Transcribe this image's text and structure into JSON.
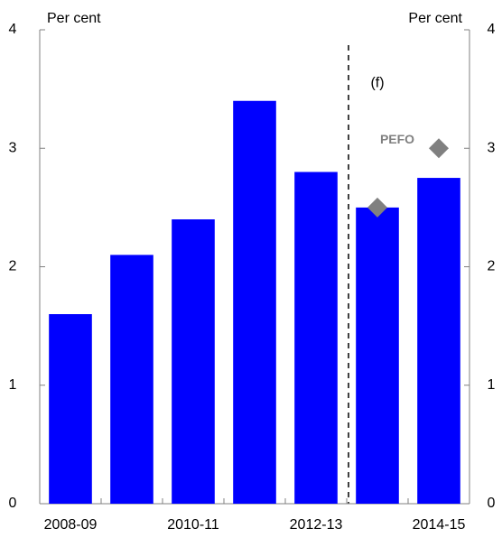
{
  "chart_data": {
    "type": "bar",
    "y_label": "Per cent",
    "y2_label": "Per cent",
    "categories": [
      "2008-09",
      null,
      "2010-11",
      null,
      "2012-13",
      null,
      "2014-15"
    ],
    "values": [
      1.6,
      2.1,
      2.4,
      3.4,
      2.8,
      2.5,
      2.75
    ],
    "color": "#0000ff",
    "pefo": {
      "name": "PEFO",
      "color": "#808080",
      "values": [
        null,
        null,
        null,
        null,
        null,
        2.5,
        3.0
      ]
    },
    "annotation": "(f)",
    "ylim": [
      0,
      4
    ],
    "yticks": [
      0,
      1,
      2,
      3,
      4
    ],
    "y2lim": [
      0,
      4
    ],
    "y2ticks": [
      0,
      1,
      2,
      3,
      4
    ],
    "grid": false
  }
}
